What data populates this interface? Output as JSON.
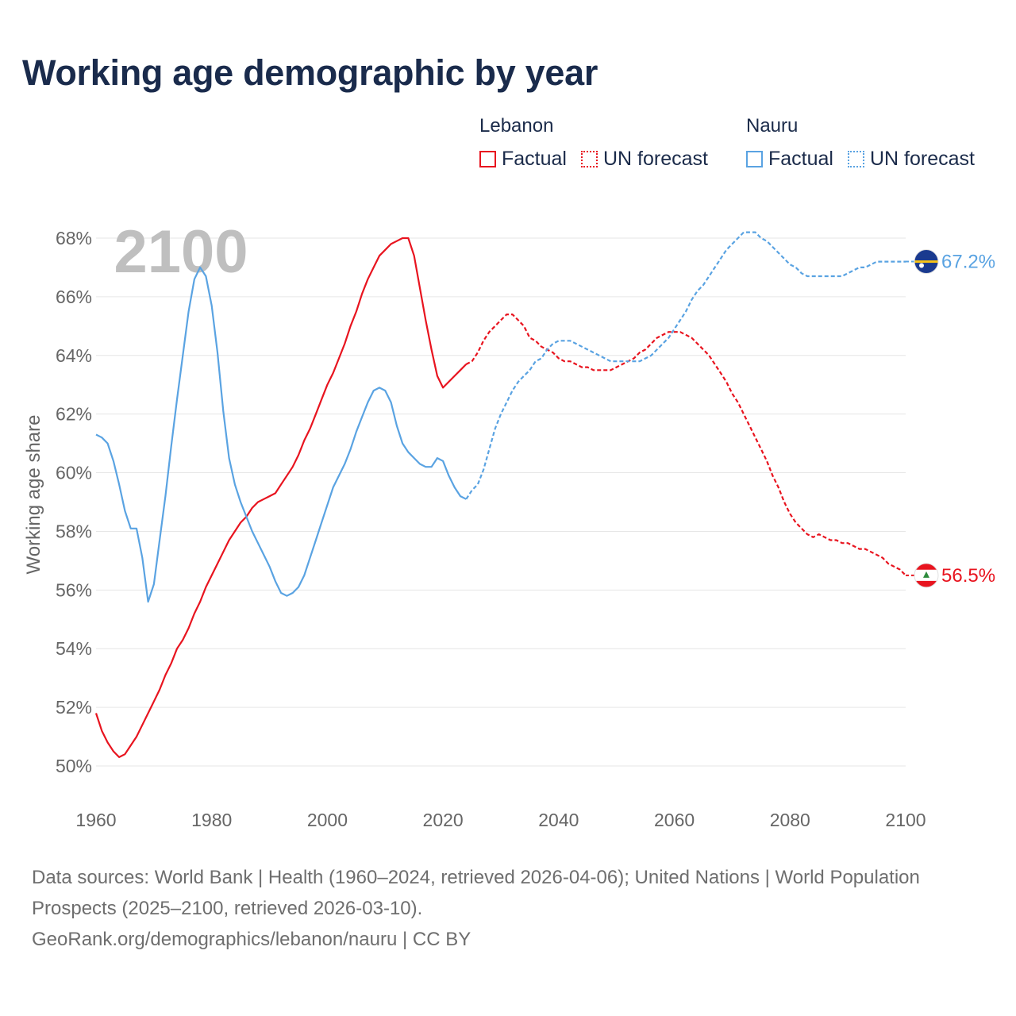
{
  "title": "Working age demographic by year",
  "legend": {
    "groups": [
      {
        "name": "Lebanon",
        "color": "#e8141f",
        "factual_label": "Factual",
        "forecast_label": "UN forecast"
      },
      {
        "name": "Nauru",
        "color": "#5aa3e2",
        "factual_label": "Factual",
        "forecast_label": "UN forecast"
      }
    ]
  },
  "year_watermark": "2100",
  "end_labels": {
    "lebanon": "56.5%",
    "nauru": "67.2%"
  },
  "footer": {
    "sources": "Data sources: World Bank | Health (1960–2024, retrieved 2026-04-06); United Nations | World Population Prospects (2025–2100, retrieved 2026-03-10).",
    "credit": "GeoRank.org/demographics/lebanon/nauru | CC BY"
  },
  "chart_data": {
    "type": "line",
    "title": "Working age demographic by year",
    "xlabel": "",
    "ylabel": "Working age share",
    "xlim": [
      1960,
      2100
    ],
    "ylim": [
      50,
      68
    ],
    "x_ticks": [
      1960,
      1980,
      2000,
      2020,
      2040,
      2060,
      2080,
      2100
    ],
    "y_ticks": [
      50,
      52,
      54,
      56,
      58,
      60,
      62,
      64,
      66,
      68
    ],
    "y_tick_labels": [
      "50%",
      "52%",
      "54%",
      "56%",
      "58%",
      "60%",
      "62%",
      "64%",
      "66%",
      "68%"
    ],
    "grid": true,
    "factual_range": [
      1960,
      2024
    ],
    "forecast_range": [
      2024,
      2100
    ],
    "series": [
      {
        "name": "Lebanon",
        "color": "#e8141f",
        "points": [
          [
            1960,
            51.8
          ],
          [
            1961,
            51.2
          ],
          [
            1962,
            50.8
          ],
          [
            1963,
            50.5
          ],
          [
            1964,
            50.3
          ],
          [
            1965,
            50.4
          ],
          [
            1966,
            50.7
          ],
          [
            1967,
            51.0
          ],
          [
            1968,
            51.4
          ],
          [
            1969,
            51.8
          ],
          [
            1970,
            52.2
          ],
          [
            1971,
            52.6
          ],
          [
            1972,
            53.1
          ],
          [
            1973,
            53.5
          ],
          [
            1974,
            54.0
          ],
          [
            1975,
            54.3
          ],
          [
            1976,
            54.7
          ],
          [
            1977,
            55.2
          ],
          [
            1978,
            55.6
          ],
          [
            1979,
            56.1
          ],
          [
            1980,
            56.5
          ],
          [
            1981,
            56.9
          ],
          [
            1982,
            57.3
          ],
          [
            1983,
            57.7
          ],
          [
            1984,
            58.0
          ],
          [
            1985,
            58.3
          ],
          [
            1986,
            58.5
          ],
          [
            1987,
            58.8
          ],
          [
            1988,
            59.0
          ],
          [
            1989,
            59.1
          ],
          [
            1990,
            59.2
          ],
          [
            1991,
            59.3
          ],
          [
            1992,
            59.6
          ],
          [
            1993,
            59.9
          ],
          [
            1994,
            60.2
          ],
          [
            1995,
            60.6
          ],
          [
            1996,
            61.1
          ],
          [
            1997,
            61.5
          ],
          [
            1998,
            62.0
          ],
          [
            1999,
            62.5
          ],
          [
            2000,
            63.0
          ],
          [
            2001,
            63.4
          ],
          [
            2002,
            63.9
          ],
          [
            2003,
            64.4
          ],
          [
            2004,
            65.0
          ],
          [
            2005,
            65.5
          ],
          [
            2006,
            66.1
          ],
          [
            2007,
            66.6
          ],
          [
            2008,
            67.0
          ],
          [
            2009,
            67.4
          ],
          [
            2010,
            67.6
          ],
          [
            2011,
            67.8
          ],
          [
            2012,
            67.9
          ],
          [
            2013,
            68.0
          ],
          [
            2014,
            68.0
          ],
          [
            2015,
            67.4
          ],
          [
            2016,
            66.3
          ],
          [
            2017,
            65.2
          ],
          [
            2018,
            64.2
          ],
          [
            2019,
            63.3
          ],
          [
            2020,
            62.9
          ],
          [
            2021,
            63.1
          ],
          [
            2022,
            63.3
          ],
          [
            2023,
            63.5
          ],
          [
            2024,
            63.7
          ],
          [
            2025,
            63.8
          ],
          [
            2026,
            64.1
          ],
          [
            2027,
            64.5
          ],
          [
            2028,
            64.8
          ],
          [
            2029,
            65.0
          ],
          [
            2030,
            65.2
          ],
          [
            2031,
            65.4
          ],
          [
            2032,
            65.4
          ],
          [
            2033,
            65.2
          ],
          [
            2034,
            65.0
          ],
          [
            2035,
            64.6
          ],
          [
            2036,
            64.5
          ],
          [
            2037,
            64.3
          ],
          [
            2038,
            64.2
          ],
          [
            2039,
            64.1
          ],
          [
            2040,
            63.9
          ],
          [
            2041,
            63.8
          ],
          [
            2042,
            63.8
          ],
          [
            2043,
            63.7
          ],
          [
            2044,
            63.6
          ],
          [
            2045,
            63.6
          ],
          [
            2046,
            63.5
          ],
          [
            2047,
            63.5
          ],
          [
            2048,
            63.5
          ],
          [
            2049,
            63.5
          ],
          [
            2050,
            63.6
          ],
          [
            2051,
            63.7
          ],
          [
            2052,
            63.8
          ],
          [
            2053,
            63.9
          ],
          [
            2054,
            64.1
          ],
          [
            2055,
            64.2
          ],
          [
            2056,
            64.4
          ],
          [
            2057,
            64.6
          ],
          [
            2058,
            64.7
          ],
          [
            2059,
            64.8
          ],
          [
            2060,
            64.8
          ],
          [
            2061,
            64.8
          ],
          [
            2062,
            64.7
          ],
          [
            2063,
            64.6
          ],
          [
            2064,
            64.4
          ],
          [
            2065,
            64.2
          ],
          [
            2066,
            64.0
          ],
          [
            2067,
            63.7
          ],
          [
            2068,
            63.4
          ],
          [
            2069,
            63.1
          ],
          [
            2070,
            62.7
          ],
          [
            2071,
            62.4
          ],
          [
            2072,
            62.0
          ],
          [
            2073,
            61.6
          ],
          [
            2074,
            61.2
          ],
          [
            2075,
            60.8
          ],
          [
            2076,
            60.4
          ],
          [
            2077,
            59.9
          ],
          [
            2078,
            59.5
          ],
          [
            2079,
            59.0
          ],
          [
            2080,
            58.6
          ],
          [
            2081,
            58.3
          ],
          [
            2082,
            58.1
          ],
          [
            2083,
            57.9
          ],
          [
            2084,
            57.8
          ],
          [
            2085,
            57.9
          ],
          [
            2086,
            57.8
          ],
          [
            2087,
            57.7
          ],
          [
            2088,
            57.7
          ],
          [
            2089,
            57.6
          ],
          [
            2090,
            57.6
          ],
          [
            2091,
            57.5
          ],
          [
            2092,
            57.4
          ],
          [
            2093,
            57.4
          ],
          [
            2094,
            57.3
          ],
          [
            2095,
            57.2
          ],
          [
            2096,
            57.1
          ],
          [
            2097,
            56.9
          ],
          [
            2098,
            56.8
          ],
          [
            2099,
            56.7
          ],
          [
            2100,
            56.5
          ]
        ]
      },
      {
        "name": "Nauru",
        "color": "#5aa3e2",
        "points": [
          [
            1960,
            61.3
          ],
          [
            1961,
            61.2
          ],
          [
            1962,
            61.0
          ],
          [
            1963,
            60.4
          ],
          [
            1964,
            59.6
          ],
          [
            1965,
            58.7
          ],
          [
            1966,
            58.1
          ],
          [
            1967,
            58.1
          ],
          [
            1968,
            57.1
          ],
          [
            1969,
            55.6
          ],
          [
            1970,
            56.2
          ],
          [
            1971,
            57.7
          ],
          [
            1972,
            59.2
          ],
          [
            1973,
            60.9
          ],
          [
            1974,
            62.5
          ],
          [
            1975,
            64.0
          ],
          [
            1976,
            65.5
          ],
          [
            1977,
            66.6
          ],
          [
            1978,
            67.0
          ],
          [
            1979,
            66.7
          ],
          [
            1980,
            65.7
          ],
          [
            1981,
            64.1
          ],
          [
            1982,
            62.1
          ],
          [
            1983,
            60.5
          ],
          [
            1984,
            59.6
          ],
          [
            1985,
            59.0
          ],
          [
            1986,
            58.5
          ],
          [
            1987,
            58.0
          ],
          [
            1988,
            57.6
          ],
          [
            1989,
            57.2
          ],
          [
            1990,
            56.8
          ],
          [
            1991,
            56.3
          ],
          [
            1992,
            55.9
          ],
          [
            1993,
            55.8
          ],
          [
            1994,
            55.9
          ],
          [
            1995,
            56.1
          ],
          [
            1996,
            56.5
          ],
          [
            1997,
            57.1
          ],
          [
            1998,
            57.7
          ],
          [
            1999,
            58.3
          ],
          [
            2000,
            58.9
          ],
          [
            2001,
            59.5
          ],
          [
            2002,
            59.9
          ],
          [
            2003,
            60.3
          ],
          [
            2004,
            60.8
          ],
          [
            2005,
            61.4
          ],
          [
            2006,
            61.9
          ],
          [
            2007,
            62.4
          ],
          [
            2008,
            62.8
          ],
          [
            2009,
            62.9
          ],
          [
            2010,
            62.8
          ],
          [
            2011,
            62.4
          ],
          [
            2012,
            61.6
          ],
          [
            2013,
            61.0
          ],
          [
            2014,
            60.7
          ],
          [
            2015,
            60.5
          ],
          [
            2016,
            60.3
          ],
          [
            2017,
            60.2
          ],
          [
            2018,
            60.2
          ],
          [
            2019,
            60.5
          ],
          [
            2020,
            60.4
          ],
          [
            2021,
            59.9
          ],
          [
            2022,
            59.5
          ],
          [
            2023,
            59.2
          ],
          [
            2024,
            59.1
          ],
          [
            2025,
            59.4
          ],
          [
            2026,
            59.6
          ],
          [
            2027,
            60.1
          ],
          [
            2028,
            60.8
          ],
          [
            2029,
            61.5
          ],
          [
            2030,
            62.0
          ],
          [
            2031,
            62.4
          ],
          [
            2032,
            62.8
          ],
          [
            2033,
            63.1
          ],
          [
            2034,
            63.3
          ],
          [
            2035,
            63.5
          ],
          [
            2036,
            63.8
          ],
          [
            2037,
            63.9
          ],
          [
            2038,
            64.2
          ],
          [
            2039,
            64.4
          ],
          [
            2040,
            64.5
          ],
          [
            2041,
            64.5
          ],
          [
            2042,
            64.5
          ],
          [
            2043,
            64.4
          ],
          [
            2044,
            64.3
          ],
          [
            2045,
            64.2
          ],
          [
            2046,
            64.1
          ],
          [
            2047,
            64.0
          ],
          [
            2048,
            63.9
          ],
          [
            2049,
            63.8
          ],
          [
            2050,
            63.8
          ],
          [
            2051,
            63.8
          ],
          [
            2052,
            63.8
          ],
          [
            2053,
            63.8
          ],
          [
            2054,
            63.8
          ],
          [
            2055,
            63.9
          ],
          [
            2056,
            64.0
          ],
          [
            2057,
            64.2
          ],
          [
            2058,
            64.4
          ],
          [
            2059,
            64.6
          ],
          [
            2060,
            64.9
          ],
          [
            2061,
            65.2
          ],
          [
            2062,
            65.5
          ],
          [
            2063,
            65.9
          ],
          [
            2064,
            66.2
          ],
          [
            2065,
            66.4
          ],
          [
            2066,
            66.7
          ],
          [
            2067,
            67.0
          ],
          [
            2068,
            67.3
          ],
          [
            2069,
            67.6
          ],
          [
            2070,
            67.8
          ],
          [
            2071,
            68.0
          ],
          [
            2072,
            68.2
          ],
          [
            2073,
            68.2
          ],
          [
            2074,
            68.2
          ],
          [
            2075,
            68.0
          ],
          [
            2076,
            67.9
          ],
          [
            2077,
            67.7
          ],
          [
            2078,
            67.5
          ],
          [
            2079,
            67.3
          ],
          [
            2080,
            67.1
          ],
          [
            2081,
            67.0
          ],
          [
            2082,
            66.8
          ],
          [
            2083,
            66.7
          ],
          [
            2084,
            66.7
          ],
          [
            2085,
            66.7
          ],
          [
            2086,
            66.7
          ],
          [
            2087,
            66.7
          ],
          [
            2088,
            66.7
          ],
          [
            2089,
            66.7
          ],
          [
            2090,
            66.8
          ],
          [
            2091,
            66.9
          ],
          [
            2092,
            67.0
          ],
          [
            2093,
            67.0
          ],
          [
            2094,
            67.1
          ],
          [
            2095,
            67.2
          ],
          [
            2096,
            67.2
          ],
          [
            2097,
            67.2
          ],
          [
            2098,
            67.2
          ],
          [
            2099,
            67.2
          ],
          [
            2100,
            67.2
          ]
        ]
      }
    ]
  }
}
